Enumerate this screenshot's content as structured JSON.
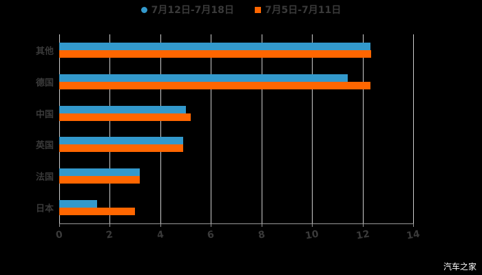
{
  "legend": [
    {
      "label": "7月12日-7月18日",
      "color": "#3399cc",
      "shape": "circle"
    },
    {
      "label": "7月5日-7月11日",
      "color": "#ff6600",
      "shape": "square"
    }
  ],
  "watermark": "汽车之家",
  "chart_data": {
    "type": "bar",
    "orientation": "horizontal",
    "title": "",
    "categories": [
      "其他",
      "德国",
      "中国",
      "英国",
      "法国",
      "日本"
    ],
    "series": [
      {
        "name": "7月12日-7月18日",
        "color": "#3399cc",
        "values": [
          12.3,
          11.4,
          5.0,
          4.9,
          3.2,
          1.5
        ]
      },
      {
        "name": "7月5日-7月11日",
        "color": "#ff6600",
        "values": [
          12.35,
          12.3,
          5.2,
          4.9,
          3.2,
          3.0
        ]
      }
    ],
    "xlabel": "",
    "ylabel": "",
    "xlim": [
      0,
      14
    ],
    "xticks": [
      "0",
      "2",
      "4",
      "6",
      "8",
      "10",
      "12",
      "14"
    ],
    "grid": true,
    "legend_position": "top"
  }
}
